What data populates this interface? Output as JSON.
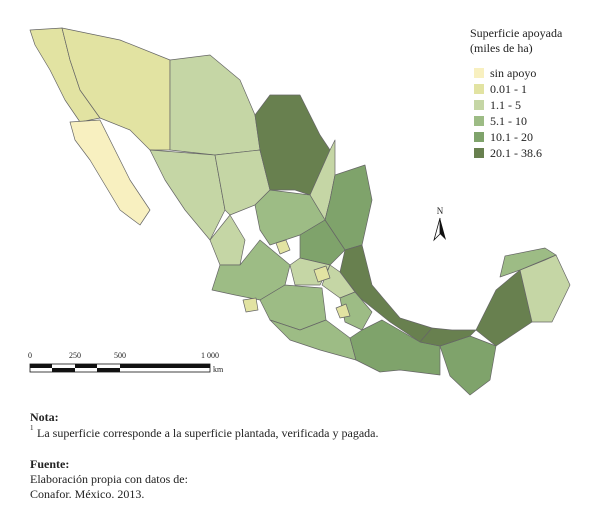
{
  "legend": {
    "title": [
      "Superficie apoyada",
      "(miles de ha)"
    ],
    "items": [
      {
        "label": "sin apoyo",
        "color": "#f8f0c0"
      },
      {
        "label": "0.01 - 1",
        "color": "#e2e3a2"
      },
      {
        "label": "1.1 - 5",
        "color": "#c5d6a5"
      },
      {
        "label": "5.1 - 10",
        "color": "#9dbc85"
      },
      {
        "label": "10.1 - 20",
        "color": "#7fa36b"
      },
      {
        "label": "20.1 - 38.6",
        "color": "#68804f"
      }
    ]
  },
  "scale_bar": {
    "labels": [
      "0",
      "250",
      "500",
      "1 000"
    ],
    "unit": "km"
  },
  "north_label": "N",
  "note": {
    "heading": "Nota:",
    "marker": "1",
    "text": "La superficie corresponde a la superficie plantada, verificada y pagada."
  },
  "source": {
    "heading": "Fuente:",
    "lines": [
      "Elaboración propia con datos de:",
      "Conafor. México. 2013."
    ]
  }
}
